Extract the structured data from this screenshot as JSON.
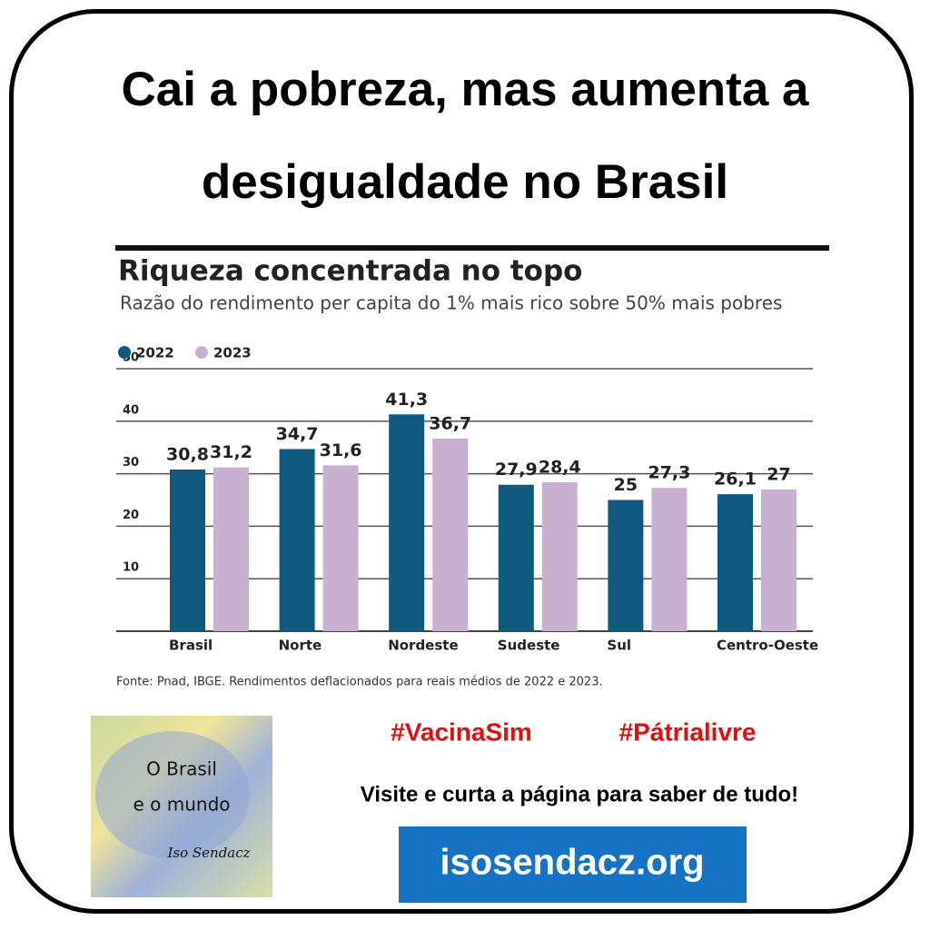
{
  "header": {
    "title": "Cai a pobreza, mas aumenta a desigualdade no Brasil"
  },
  "chart_data": {
    "type": "bar",
    "title": "Riqueza concentrada no topo",
    "subtitle": "Razão do rendimento per capita do 1% mais rico sobre 50% mais pobres",
    "source": "Fonte: Pnad, IBGE. Rendimentos deflacionados para reais médios de 2022 e 2023.",
    "categories": [
      "Brasil",
      "Norte",
      "Nordeste",
      "Sudeste",
      "Sul",
      "Centro-Oeste"
    ],
    "series": [
      {
        "name": "2022",
        "color": "#0e5a7e",
        "values": [
          30.8,
          34.7,
          41.3,
          27.9,
          25,
          26.1
        ],
        "value_labels": [
          "30,8",
          "34,7",
          "41,3",
          "27,9",
          "25",
          "26,1"
        ]
      },
      {
        "name": "2023",
        "color": "#c8b0d0",
        "values": [
          31.2,
          31.6,
          36.7,
          28.4,
          27.3,
          27
        ],
        "value_labels": [
          "31,2",
          "31,6",
          "36,7",
          "28,4",
          "27,3",
          "27"
        ]
      }
    ],
    "ylim": [
      0,
      50
    ],
    "yticks": [
      10,
      20,
      30,
      40,
      50
    ],
    "grid": true,
    "legend": "top-left"
  },
  "footer": {
    "logo": {
      "line1": "O Brasil",
      "line2": "e o mundo",
      "signature": "Iso Sendacz"
    },
    "hashtags": [
      "#VacinaSim",
      "#Pátrialivre"
    ],
    "message": "Visite e curta a página para saber de tudo!",
    "link": "isosendacz.org"
  }
}
